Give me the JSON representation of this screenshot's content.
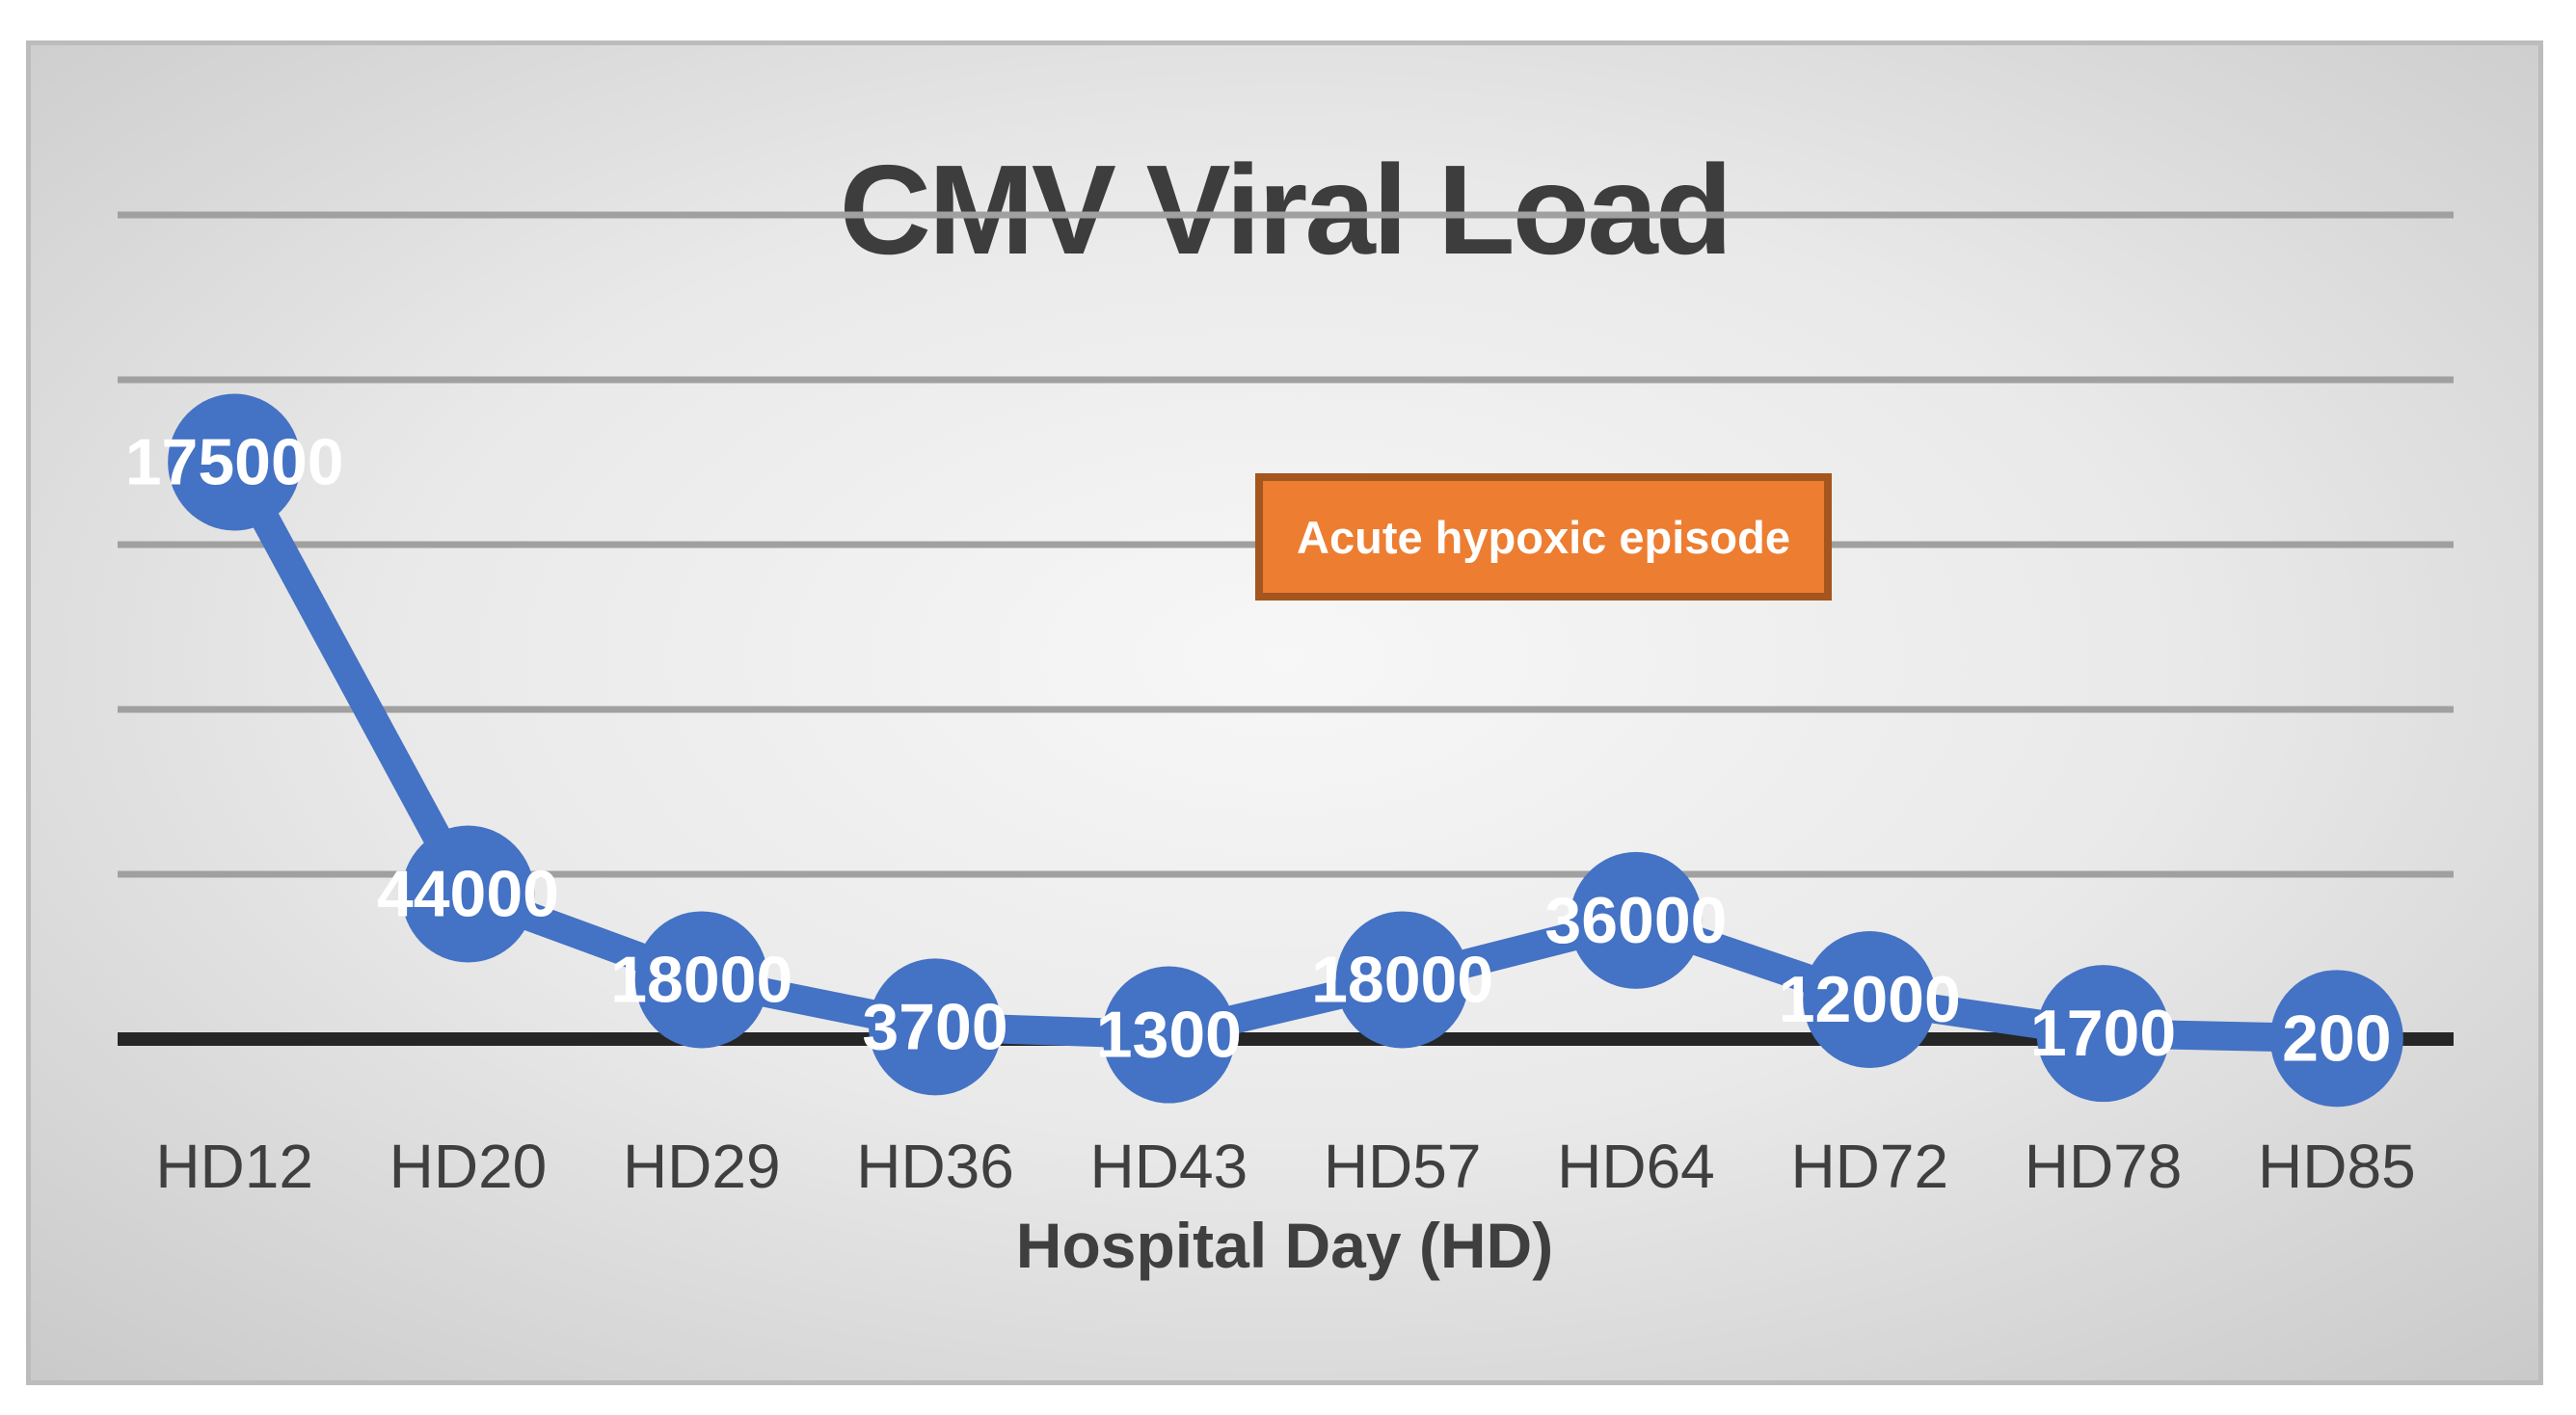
{
  "chart_data": {
    "type": "line",
    "title": "CMV Viral Load",
    "xlabel": "Hospital Day (HD)",
    "ylabel": "",
    "categories": [
      "HD12",
      "HD20",
      "HD29",
      "HD36",
      "HD43",
      "HD57",
      "HD64",
      "HD72",
      "HD78",
      "HD85"
    ],
    "values": [
      175000,
      44000,
      18000,
      3700,
      1300,
      18000,
      36000,
      12000,
      1700,
      200
    ],
    "ylim": [
      0,
      250000
    ],
    "gridline_step": 50000,
    "grid": true,
    "legend_position": "none",
    "annotation": "Acute hypoxic episode",
    "colors": {
      "series": "#4472C4",
      "data_label": "#FFFFFF",
      "annotation_fill": "#ED7D31",
      "annotation_border": "#A5551E",
      "title_text": "#3D3D3D",
      "axis_text": "#3F3F3F",
      "gridline": "#A0A0A0",
      "axis_line": "#262626"
    }
  }
}
